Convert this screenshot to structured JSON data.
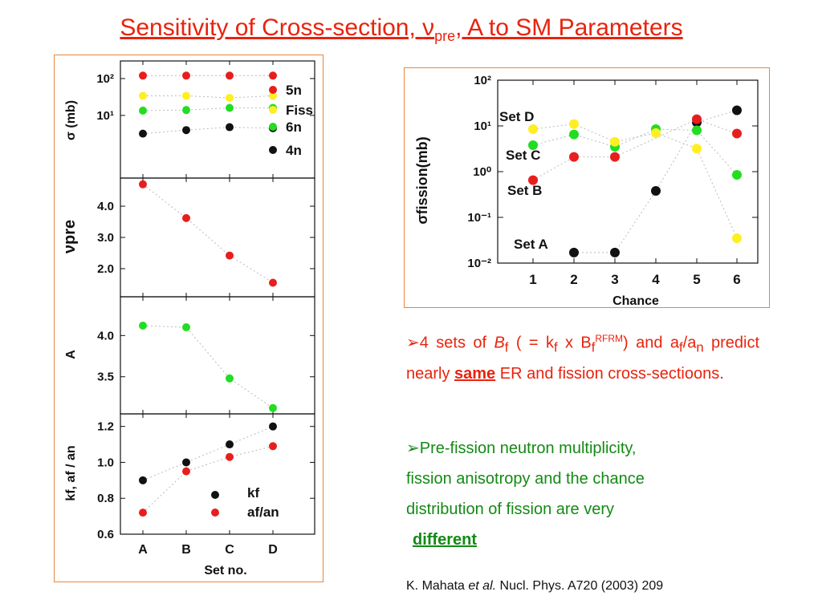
{
  "title": {
    "prefix": "Sensitivity of Cross-section, ",
    "nu": "ν",
    "sub": "pre",
    "suffix": ", A to SM Parameters"
  },
  "colors": {
    "black": "#111111",
    "red": "#e81e1e",
    "yellow": "#ffee22",
    "green": "#22dd22",
    "frame": "#e8863a",
    "title": "#e8230d",
    "bullet2": "#138a14"
  },
  "chart_data": [
    {
      "type": "scatter",
      "panel": "sigma",
      "ylabel": "σ (mb)",
      "yscale": "log",
      "ylim": [
        0.2,
        300
      ],
      "yticks": [
        "10²",
        "10¹"
      ],
      "categories": [
        "A",
        "B",
        "C",
        "D"
      ],
      "legend_position": "right",
      "series": [
        {
          "name": "5n",
          "color": "red",
          "values": [
            120,
            120,
            120,
            120
          ]
        },
        {
          "name": "Fiss",
          "color": "yellow",
          "values": [
            34,
            34,
            30,
            34
          ]
        },
        {
          "name": "6n",
          "color": "green",
          "values": [
            13.5,
            14,
            16,
            16
          ]
        },
        {
          "name": "4n",
          "color": "black",
          "values": [
            3.2,
            4,
            4.8,
            4.5
          ]
        }
      ]
    },
    {
      "type": "scatter",
      "panel": "nu_pre",
      "ylabel": "νpre",
      "ylim": [
        1.1,
        4.9
      ],
      "yticks": [
        "4.0",
        "3.0",
        "2.0"
      ],
      "categories": [
        "A",
        "B",
        "C",
        "D"
      ],
      "series": [
        {
          "color": "red",
          "values": [
            4.7,
            3.62,
            2.42,
            1.55
          ]
        }
      ]
    },
    {
      "type": "scatter",
      "panel": "anisotropy",
      "ylabel": "A",
      "ylim": [
        3.05,
        4.47
      ],
      "yticks": [
        "4.0",
        "3.5"
      ],
      "categories": [
        "A",
        "B",
        "C",
        "D"
      ],
      "series": [
        {
          "color": "green",
          "values": [
            4.12,
            4.1,
            3.48,
            3.12
          ]
        }
      ]
    },
    {
      "type": "scatter",
      "panel": "kf_af_an",
      "ylabel": "kf, af / an",
      "ylim": [
        0.6,
        1.27
      ],
      "yticks": [
        "1.2",
        "1.0",
        "0.8",
        "0.6"
      ],
      "categories": [
        "A",
        "B",
        "C",
        "D"
      ],
      "xlabel": "Set no.",
      "series": [
        {
          "name": "kf",
          "color": "black",
          "values": [
            0.9,
            1.0,
            1.1,
            1.2
          ]
        },
        {
          "name": "af/an",
          "color": "red",
          "values": [
            0.72,
            0.95,
            1.03,
            1.09
          ]
        }
      ]
    },
    {
      "type": "scatter",
      "panel": "fission_chance",
      "ylabel": "σfission(mb)",
      "xlabel": "Chance",
      "yscale": "log",
      "ylim": [
        0.01,
        100
      ],
      "yticks": [
        "10²",
        "10¹",
        "10⁰",
        "10⁻¹",
        "10⁻²"
      ],
      "x": [
        1,
        2,
        3,
        4,
        5,
        6
      ],
      "series": [
        {
          "name": "Set A",
          "color": "black",
          "values": [
            null,
            0.017,
            0.017,
            0.38,
            12,
            22
          ]
        },
        {
          "name": "Set B",
          "color": "red",
          "values": [
            0.65,
            2.1,
            2.1,
            null,
            14,
            6.8
          ]
        },
        {
          "name": "Set C",
          "color": "green",
          "values": [
            3.8,
            6.5,
            3.5,
            8.5,
            8,
            0.85
          ]
        },
        {
          "name": "Set D",
          "color": "yellow",
          "values": [
            8.5,
            11,
            4.5,
            7,
            3.2,
            0.035
          ]
        }
      ],
      "annotations": [
        "Set D",
        "Set C",
        "Set B",
        "Set A"
      ]
    }
  ],
  "text": {
    "b1": {
      "arrow": "➢",
      "t1": "4 sets of ",
      "bf": "B",
      "bfsub": "f",
      "t2": " ( = k",
      "kfsub": "f",
      "t3": " x B",
      "bfsub2": "f",
      "sup": "RFRM",
      "t4": ") and a",
      "afsub": "f",
      "t5": "/a",
      "ansub": "n",
      "t6": " predict nearly ",
      "same": "same",
      "t7": " ER and fission cross-sectioons."
    },
    "b2": {
      "arrow": "➢",
      "line1": "Pre-fission neutron multiplicity,",
      "line2": "fission anisotropy and the chance",
      "line3": "distribution of fission are very",
      "different": "different"
    },
    "ref": {
      "authors": "K. Mahata ",
      "etal": "et al.",
      "journal": " Nucl. Phys. A720 (2003) 209"
    }
  }
}
